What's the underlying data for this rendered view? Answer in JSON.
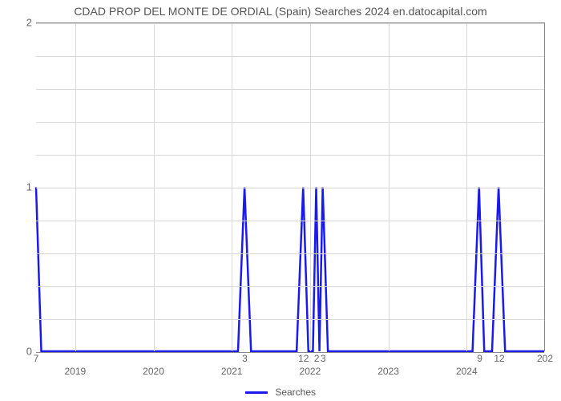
{
  "chart": {
    "type": "line",
    "title": "CDAD PROP DEL MONTE DE ORDIAL (Spain) Searches 2024 en.datocapital.com",
    "title_fontsize": 14,
    "title_color": "#545454",
    "background_color": "#ffffff",
    "grid_color": "#d8d8d8",
    "axis_color": "#888888",
    "line_color": "#1a1aee",
    "line_width": 2.5,
    "ylim": [
      0,
      2
    ],
    "ytick_step": 1,
    "yticks": [
      0,
      1,
      2
    ],
    "minor_y_count": 5,
    "x_domain": [
      0,
      78
    ],
    "x_year_ticks": [
      {
        "x": 6,
        "label": "2019"
      },
      {
        "x": 18,
        "label": "2020"
      },
      {
        "x": 30,
        "label": "2021"
      },
      {
        "x": 42,
        "label": "2022"
      },
      {
        "x": 54,
        "label": "2023"
      },
      {
        "x": 66,
        "label": "2024"
      }
    ],
    "x_month_ticks": [
      {
        "x": 0,
        "label": "7"
      },
      {
        "x": 32,
        "label": "3"
      },
      {
        "x": 41,
        "label": "12"
      },
      {
        "x": 43,
        "label": "2"
      },
      {
        "x": 44,
        "label": "3"
      },
      {
        "x": 68,
        "label": "9"
      },
      {
        "x": 71,
        "label": "12"
      },
      {
        "x": 78,
        "label": "202"
      }
    ],
    "series": {
      "name": "Searches",
      "points": [
        {
          "x": 0,
          "y": 1
        },
        {
          "x": 0.8,
          "y": 0
        },
        {
          "x": 31,
          "y": 0
        },
        {
          "x": 32,
          "y": 1
        },
        {
          "x": 33,
          "y": 0
        },
        {
          "x": 40,
          "y": 0
        },
        {
          "x": 41,
          "y": 1
        },
        {
          "x": 41.8,
          "y": 0
        },
        {
          "x": 42.5,
          "y": 0
        },
        {
          "x": 43,
          "y": 1
        },
        {
          "x": 43.5,
          "y": 0
        },
        {
          "x": 44,
          "y": 1
        },
        {
          "x": 44.8,
          "y": 0
        },
        {
          "x": 67,
          "y": 0
        },
        {
          "x": 68,
          "y": 1
        },
        {
          "x": 68.8,
          "y": 0
        },
        {
          "x": 70,
          "y": 0
        },
        {
          "x": 71,
          "y": 1
        },
        {
          "x": 72,
          "y": 0
        },
        {
          "x": 78,
          "y": 0
        }
      ]
    },
    "legend": {
      "label": "Searches",
      "swatch_color": "#1a1aee"
    }
  }
}
